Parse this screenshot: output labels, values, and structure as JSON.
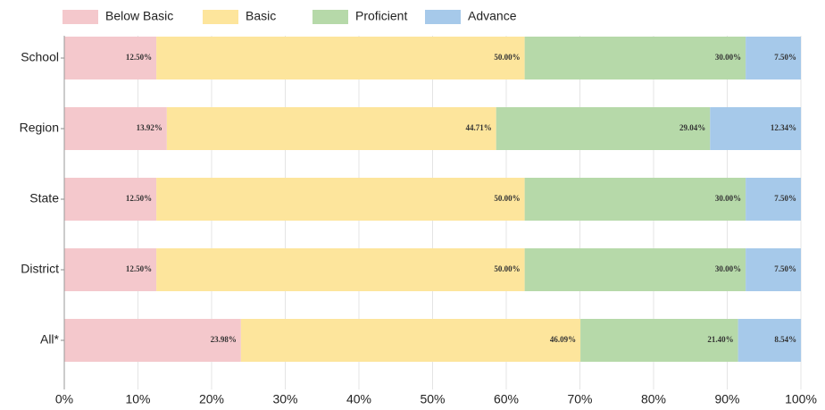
{
  "chart_data": {
    "type": "stacked-bar-horizontal",
    "categories": [
      "School",
      "Region",
      "State",
      "District",
      "All*"
    ],
    "series": [
      {
        "name": "Below Basic",
        "color": "#f4c8cc",
        "values": [
          12.5,
          13.92,
          12.5,
          12.5,
          23.98
        ],
        "value_labels": [
          "12.50%",
          "13.92%",
          "12.50%",
          "12.50%",
          "23.98%"
        ]
      },
      {
        "name": "Basic",
        "color": "#fde59c",
        "values": [
          50,
          44.71,
          50,
          50,
          46.09
        ],
        "value_labels": [
          "50.00%",
          "44.71%",
          "50.00%",
          "50.00%",
          "46.09%"
        ]
      },
      {
        "name": "Proficient",
        "color": "#b6d9a9",
        "values": [
          30,
          29.04,
          30,
          30,
          21.4
        ],
        "value_labels": [
          "30.00%",
          "29.04%",
          "30.00%",
          "30.00%",
          "21.40%"
        ]
      },
      {
        "name": "Advance",
        "color": "#a6c9ea",
        "values": [
          7.5,
          12.34,
          7.5,
          7.5,
          8.54
        ],
        "value_labels": [
          "7.50%",
          "12.34%",
          "7.50%",
          "7.50%",
          "8.54%"
        ]
      }
    ],
    "xlim": [
      0,
      100
    ],
    "xticks": [
      {
        "value": 0,
        "label": "0%"
      },
      {
        "value": 10,
        "label": "10%"
      },
      {
        "value": 20,
        "label": "20%"
      },
      {
        "value": 30,
        "label": "30%"
      },
      {
        "value": 40,
        "label": "40%"
      },
      {
        "value": 50,
        "label": "50%"
      },
      {
        "value": 60,
        "label": "60%"
      },
      {
        "value": 70,
        "label": "70%"
      },
      {
        "value": 80,
        "label": "80%"
      },
      {
        "value": 90,
        "label": "90%"
      },
      {
        "value": 100,
        "label": "100%"
      }
    ],
    "grid": true,
    "legend": "top"
  }
}
